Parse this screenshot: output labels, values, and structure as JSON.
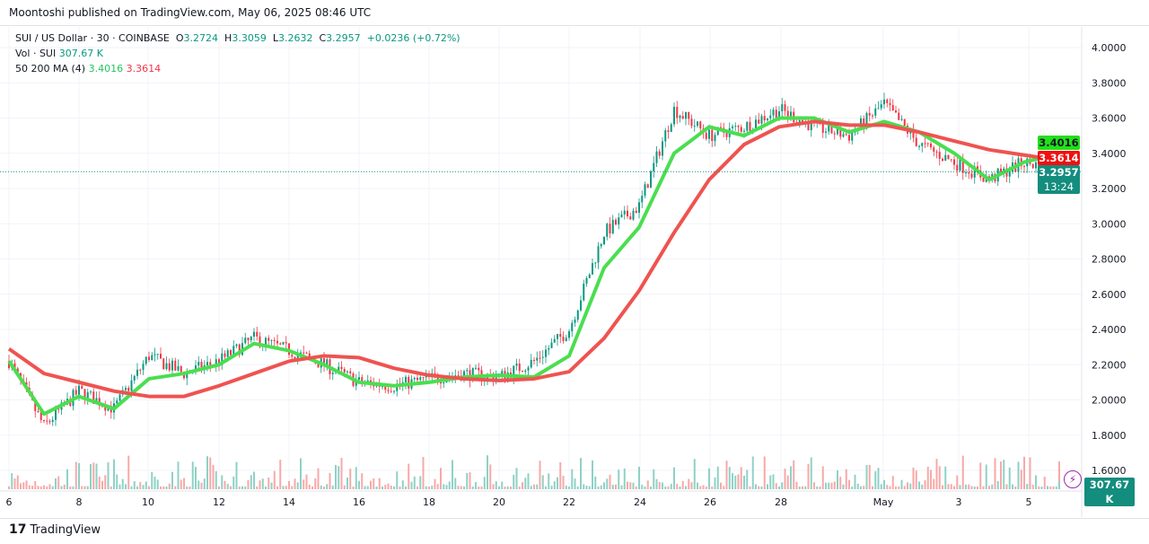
{
  "publisher": "Moontoshi published on TradingView.com, May 06, 2025 08:46 UTC",
  "legend": {
    "symbol": "SUI / US Dollar · 30 · COINBASE",
    "o_label": "O",
    "o": "3.2724",
    "h_label": "H",
    "h": "3.3059",
    "l_label": "L",
    "l": "3.2632",
    "c_label": "C",
    "c": "3.2957",
    "change": "+0.0236 (+0.72%)",
    "vol_label": "Vol · SUI",
    "vol": "307.67 K",
    "ma_label": "50 200 MA (4)",
    "ma50": "3.4016",
    "ma200": "3.3614"
  },
  "tags": {
    "ma50": "3.4016",
    "ma200": "3.3614",
    "price": "3.2957",
    "countdown": "13:24",
    "volume": "307.67 K"
  },
  "logo": "TradingView",
  "colors": {
    "up": "#089981",
    "down": "#f23645",
    "ma50": "#4ade50",
    "ma200": "#ef5350",
    "price_tag": "#138d7e"
  },
  "chart_data": {
    "type": "candlestick",
    "yaxis": {
      "ticks": [
        "4.0000",
        "3.8000",
        "3.6000",
        "3.4000",
        "3.2000",
        "3.0000",
        "2.8000",
        "2.6000",
        "2.4000",
        "2.2000",
        "2.0000",
        "1.8000",
        "1.6000"
      ],
      "range": [
        1.56,
        4.08
      ],
      "side": "right"
    },
    "xaxis": {
      "ticks": [
        "6",
        "8",
        "10",
        "12",
        "14",
        "16",
        "18",
        "20",
        "22",
        "24",
        "26",
        "28",
        "May",
        "3",
        "5"
      ]
    },
    "dates": [
      "Apr 6",
      "Apr 7",
      "Apr 8",
      "Apr 9",
      "Apr 10",
      "Apr 11",
      "Apr 12",
      "Apr 13",
      "Apr 14",
      "Apr 15",
      "Apr 16",
      "Apr 17",
      "Apr 18",
      "Apr 19",
      "Apr 20",
      "Apr 21",
      "Apr 22",
      "Apr 23",
      "Apr 24",
      "Apr 25",
      "Apr 26",
      "Apr 27",
      "Apr 28",
      "Apr 29",
      "Apr 30",
      "May 1",
      "May 2",
      "May 3",
      "May 4",
      "May 5",
      "May 6"
    ],
    "close": [
      2.22,
      1.85,
      2.05,
      1.95,
      2.25,
      2.15,
      2.22,
      2.35,
      2.28,
      2.2,
      2.1,
      2.08,
      2.12,
      2.15,
      2.13,
      2.22,
      2.4,
      2.95,
      3.1,
      3.65,
      3.5,
      3.55,
      3.65,
      3.55,
      3.5,
      3.68,
      3.45,
      3.35,
      3.25,
      3.35,
      3.3
    ],
    "series": [
      {
        "name": "50 MA",
        "values": [
          2.22,
          1.92,
          2.02,
          1.95,
          2.12,
          2.15,
          2.2,
          2.32,
          2.28,
          2.2,
          2.1,
          2.08,
          2.1,
          2.13,
          2.14,
          2.13,
          2.25,
          2.75,
          2.98,
          3.4,
          3.55,
          3.5,
          3.6,
          3.6,
          3.52,
          3.58,
          3.52,
          3.4,
          3.25,
          3.35,
          3.4
        ]
      },
      {
        "name": "200 MA",
        "values": [
          2.29,
          2.15,
          2.1,
          2.05,
          2.02,
          2.02,
          2.08,
          2.15,
          2.22,
          2.25,
          2.24,
          2.18,
          2.14,
          2.12,
          2.11,
          2.12,
          2.16,
          2.35,
          2.62,
          2.95,
          3.25,
          3.45,
          3.55,
          3.58,
          3.56,
          3.56,
          3.52,
          3.47,
          3.42,
          3.39,
          3.36
        ]
      }
    ],
    "last_price": 3.2957
  }
}
